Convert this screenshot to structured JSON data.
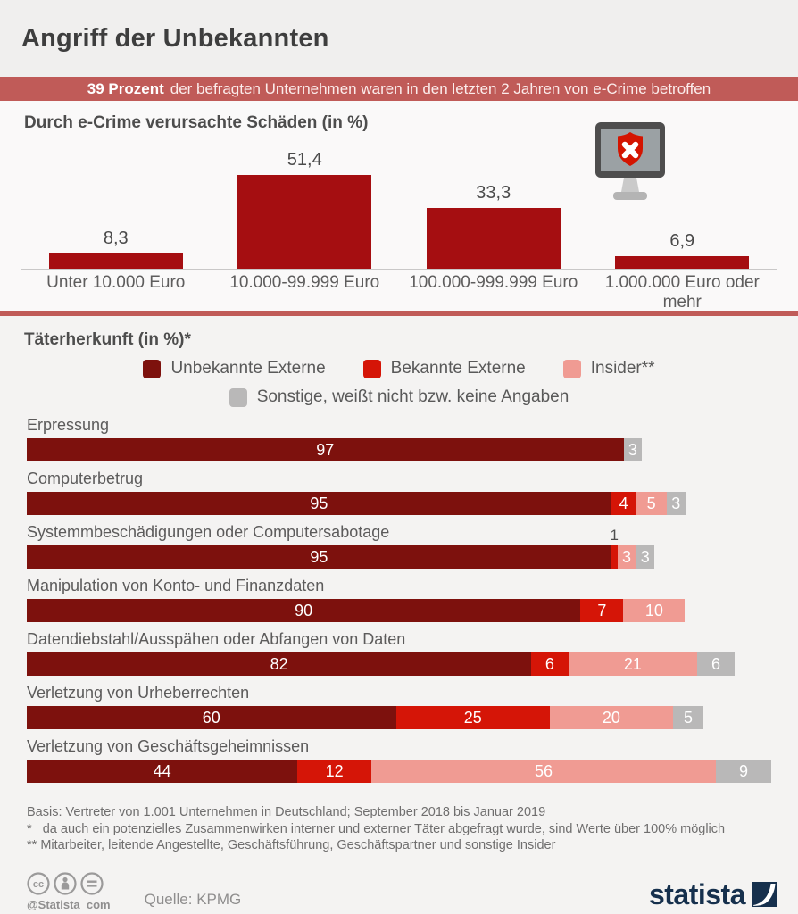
{
  "header": {
    "title": "Angriff der Unbekannten"
  },
  "banner": {
    "highlight": "39 Prozent",
    "text": "der befragten Unternehmen waren in den letzten 2 Jahren von e-Crime betroffen",
    "bg_color": "#c05b58"
  },
  "chart_data": [
    {
      "type": "bar",
      "title": "Durch e-Crime verursachte Schäden (in %)",
      "categories": [
        "Unter 10.000 Euro",
        "10.000-99.999 Euro",
        "100.000-999.999 Euro",
        "1.000.000 Euro oder mehr"
      ],
      "values": [
        8.3,
        51.4,
        33.3,
        6.9
      ],
      "value_labels": [
        "8,3",
        "51,4",
        "33,3",
        "6,9"
      ],
      "bar_color": "#a50e11",
      "ylim": [
        0,
        55
      ],
      "grid": false,
      "legend_position": "none",
      "icon": "monitor-shield-x-icon"
    },
    {
      "type": "bar",
      "variant": "horizontal-stacked",
      "title": "Täterherkunft (in %)*",
      "xmax": 121,
      "legend_position": "top-center",
      "legend": [
        {
          "label": "Unbekannte Externe",
          "color": "#7d110d"
        },
        {
          "label": "Bekannte Externe",
          "color": "#d51507"
        },
        {
          "label": "Insider**",
          "color": "#f09b93"
        },
        {
          "label": "Sonstige, weißt nicht bzw. keine Angaben",
          "color": "#b9b8b8"
        }
      ],
      "categories": [
        "Erpressung",
        "Computerbetrug",
        "Systemmbeschädigungen oder Computersabotage",
        "Manipulation von Konto- und Finanzdaten",
        "Datendiebstahl/Ausspähen oder Abfangen von Daten",
        "Verletzung von Urheberrechten",
        "Verletzung von Geschäftsgeheimnissen"
      ],
      "series": [
        {
          "name": "Unbekannte Externe",
          "values": [
            97,
            95,
            95,
            90,
            82,
            60,
            44
          ]
        },
        {
          "name": "Bekannte Externe",
          "values": [
            0,
            4,
            1,
            7,
            6,
            25,
            12
          ]
        },
        {
          "name": "Insider**",
          "values": [
            0,
            5,
            3,
            10,
            21,
            20,
            56
          ]
        },
        {
          "name": "Sonstige, weißt nicht bzw. keine Angaben",
          "values": [
            3,
            3,
            3,
            0,
            6,
            5,
            9
          ]
        }
      ],
      "rows": [
        {
          "label": "Erpressung",
          "segments": [
            {
              "series": 0,
              "value": 97,
              "label": "97"
            },
            {
              "series": 3,
              "value": 3,
              "label": "3"
            }
          ]
        },
        {
          "label": "Computerbetrug",
          "segments": [
            {
              "series": 0,
              "value": 95,
              "label": "95"
            },
            {
              "series": 1,
              "value": 4,
              "label": "4"
            },
            {
              "series": 2,
              "value": 5,
              "label": "5"
            },
            {
              "series": 3,
              "value": 3,
              "label": "3"
            }
          ]
        },
        {
          "label": "Systemmbeschädigungen oder Computersabotage",
          "segments": [
            {
              "series": 0,
              "value": 95,
              "label": "95"
            },
            {
              "series": 1,
              "value": 1,
              "label": "1",
              "label_above": true
            },
            {
              "series": 2,
              "value": 3,
              "label": "3"
            },
            {
              "series": 3,
              "value": 3,
              "label": "3"
            }
          ]
        },
        {
          "label": "Manipulation von Konto- und Finanzdaten",
          "segments": [
            {
              "series": 0,
              "value": 90,
              "label": "90"
            },
            {
              "series": 1,
              "value": 7,
              "label": "7"
            },
            {
              "series": 2,
              "value": 10,
              "label": "10"
            }
          ]
        },
        {
          "label": "Datendiebstahl/Ausspähen oder Abfangen von Daten",
          "segments": [
            {
              "series": 0,
              "value": 82,
              "label": "82"
            },
            {
              "series": 1,
              "value": 6,
              "label": "6"
            },
            {
              "series": 2,
              "value": 21,
              "label": "21"
            },
            {
              "series": 3,
              "value": 6,
              "label": "6"
            }
          ]
        },
        {
          "label": "Verletzung von Urheberrechten",
          "segments": [
            {
              "series": 0,
              "value": 60,
              "label": "60"
            },
            {
              "series": 1,
              "value": 25,
              "label": "25"
            },
            {
              "series": 2,
              "value": 20,
              "label": "20"
            },
            {
              "series": 3,
              "value": 5,
              "label": "5"
            }
          ]
        },
        {
          "label": "Verletzung von Geschäftsgeheimnissen",
          "segments": [
            {
              "series": 0,
              "value": 44,
              "label": "44"
            },
            {
              "series": 1,
              "value": 12,
              "label": "12"
            },
            {
              "series": 2,
              "value": 56,
              "label": "56"
            },
            {
              "series": 3,
              "value": 9,
              "label": "9"
            }
          ]
        }
      ]
    }
  ],
  "footnotes": [
    "Basis: Vertreter von 1.001 Unternehmen in Deutschland; September 2018 bis Januar 2019",
    "*   da auch ein potenzielles Zusammenwirken interner und externer Täter abgefragt wurde, sind Werte über 100% möglich",
    "** Mitarbeiter, leitende Angestellte, Geschäftsführung, Geschäftspartner und sonstige Insider"
  ],
  "footer": {
    "handle": "@Statista_com",
    "source": "Quelle: KPMG",
    "logo_text": "statista",
    "license_icons": [
      "cc-icon",
      "attribution-icon",
      "no-derivatives-icon"
    ]
  },
  "colors": {
    "banner": "#c05b58",
    "divider": "#c05b58",
    "top_bar": "#a50e11",
    "stacked_series": [
      "#7d110d",
      "#d51507",
      "#f09b93",
      "#b9b8b8"
    ],
    "logo_navy": "#16304d",
    "shield_red": "#d41400"
  }
}
